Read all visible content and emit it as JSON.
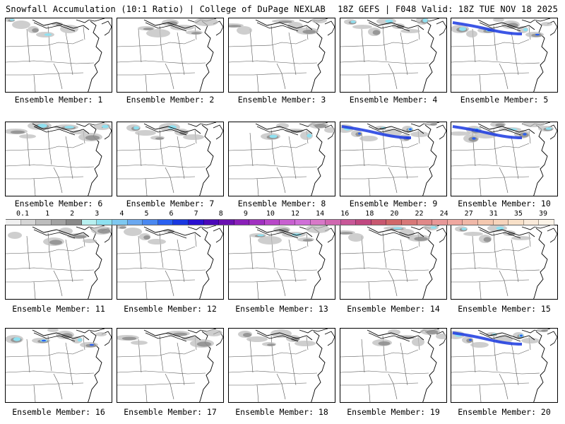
{
  "header": {
    "title": "Snowfall Accumulation (10:1 Ratio) | College of DuPage NEXLAB",
    "run_info": "18Z GEFS | F048 Valid: 18Z TUE NOV 18 2025"
  },
  "label_prefix": "Ensemble Member:",
  "members": [
    {
      "number": "1",
      "label": "Ensemble Member: 1",
      "intensity": 0.35
    },
    {
      "number": "2",
      "label": "Ensemble Member: 2",
      "intensity": 0.25
    },
    {
      "number": "3",
      "label": "Ensemble Member: 3",
      "intensity": 0.3
    },
    {
      "number": "4",
      "label": "Ensemble Member: 4",
      "intensity": 0.45
    },
    {
      "number": "5",
      "label": "Ensemble Member: 5",
      "intensity": 0.7
    },
    {
      "number": "6",
      "label": "Ensemble Member: 6",
      "intensity": 0.5
    },
    {
      "number": "7",
      "label": "Ensemble Member: 7",
      "intensity": 0.35
    },
    {
      "number": "8",
      "label": "Ensemble Member: 8",
      "intensity": 0.4
    },
    {
      "number": "9",
      "label": "Ensemble Member: 9",
      "intensity": 0.8
    },
    {
      "number": "10",
      "label": "Ensemble Member: 10",
      "intensity": 0.75
    },
    {
      "number": "11",
      "label": "Ensemble Member: 11",
      "intensity": 0.3
    },
    {
      "number": "12",
      "label": "Ensemble Member: 12",
      "intensity": 0.2
    },
    {
      "number": "13",
      "label": "Ensemble Member: 13",
      "intensity": 0.35
    },
    {
      "number": "14",
      "label": "Ensemble Member: 14",
      "intensity": 0.4
    },
    {
      "number": "15",
      "label": "Ensemble Member: 15",
      "intensity": 0.35
    },
    {
      "number": "16",
      "label": "Ensemble Member: 16",
      "intensity": 0.55
    },
    {
      "number": "17",
      "label": "Ensemble Member: 17",
      "intensity": 0.25
    },
    {
      "number": "18",
      "label": "Ensemble Member: 18",
      "intensity": 0.25
    },
    {
      "number": "19",
      "label": "Ensemble Member: 19",
      "intensity": 0.3
    },
    {
      "number": "20",
      "label": "Ensemble Member: 20",
      "intensity": 0.65
    }
  ],
  "colorbar": {
    "tick_labels": [
      "0.1",
      "1",
      "2",
      "3",
      "4",
      "5",
      "6",
      "7",
      "8",
      "9",
      "10",
      "12",
      "14",
      "16",
      "18",
      "20",
      "22",
      "24",
      "27",
      "31",
      "35",
      "39"
    ],
    "colors": [
      "#f0f0f0",
      "#d6d6d6",
      "#bdbdbd",
      "#a3a3a3",
      "#8a8a8a",
      "#b8f0f0",
      "#8ee0f0",
      "#7ec8f0",
      "#6aa8f0",
      "#4a88f0",
      "#2a60f0",
      "#1a38e0",
      "#2a10d0",
      "#4a08b8",
      "#6a10b0",
      "#8a20b8",
      "#a030c0",
      "#b848c8",
      "#c860d0",
      "#d070d8",
      "#d878c8",
      "#d068b0",
      "#c85898",
      "#c04880",
      "#c85870",
      "#d06868",
      "#d87878",
      "#e08888",
      "#e89898",
      "#f0a8a0",
      "#f0b8a8",
      "#f4c8b0",
      "#f6d4bc",
      "#f8e0c8",
      "#faeada",
      "#fcf4e8"
    ]
  }
}
